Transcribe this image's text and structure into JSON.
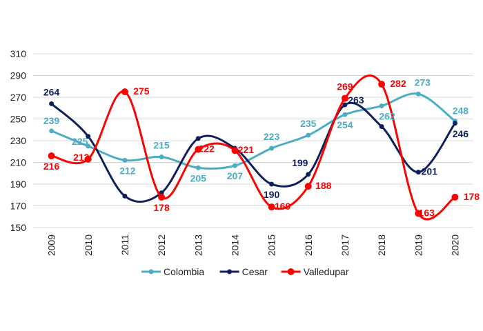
{
  "chart_data": {
    "type": "line",
    "x": [
      "2009",
      "2010",
      "2011",
      "2012",
      "2013",
      "2014",
      "2015",
      "2016",
      "2017",
      "2018",
      "2019",
      "2020"
    ],
    "ylim": [
      150,
      310
    ],
    "yticks": [
      150,
      170,
      190,
      210,
      230,
      250,
      270,
      290,
      310
    ],
    "grid": true,
    "smooth": true,
    "legend_position": "bottom",
    "series": [
      {
        "name": "Colombia",
        "color": "#4bacc6",
        "values": [
          239,
          225,
          212,
          215,
          205,
          207,
          223,
          235,
          254,
          262,
          273,
          248
        ],
        "point_size": "small"
      },
      {
        "name": "Cesar",
        "color": "#0f1f5c",
        "values": [
          264,
          234,
          179,
          182,
          232,
          223,
          190,
          199,
          263,
          243,
          201,
          246
        ],
        "labels": [
          "264",
          "",
          "",
          "",
          "",
          "",
          "190",
          "199",
          "263",
          "",
          "201",
          "246"
        ],
        "point_size": "small"
      },
      {
        "name": "Valledupar",
        "color": "#ff0000",
        "values": [
          216,
          213,
          275,
          178,
          222,
          221,
          169,
          188,
          269,
          282,
          163,
          178
        ],
        "point_size": "large"
      }
    ]
  }
}
